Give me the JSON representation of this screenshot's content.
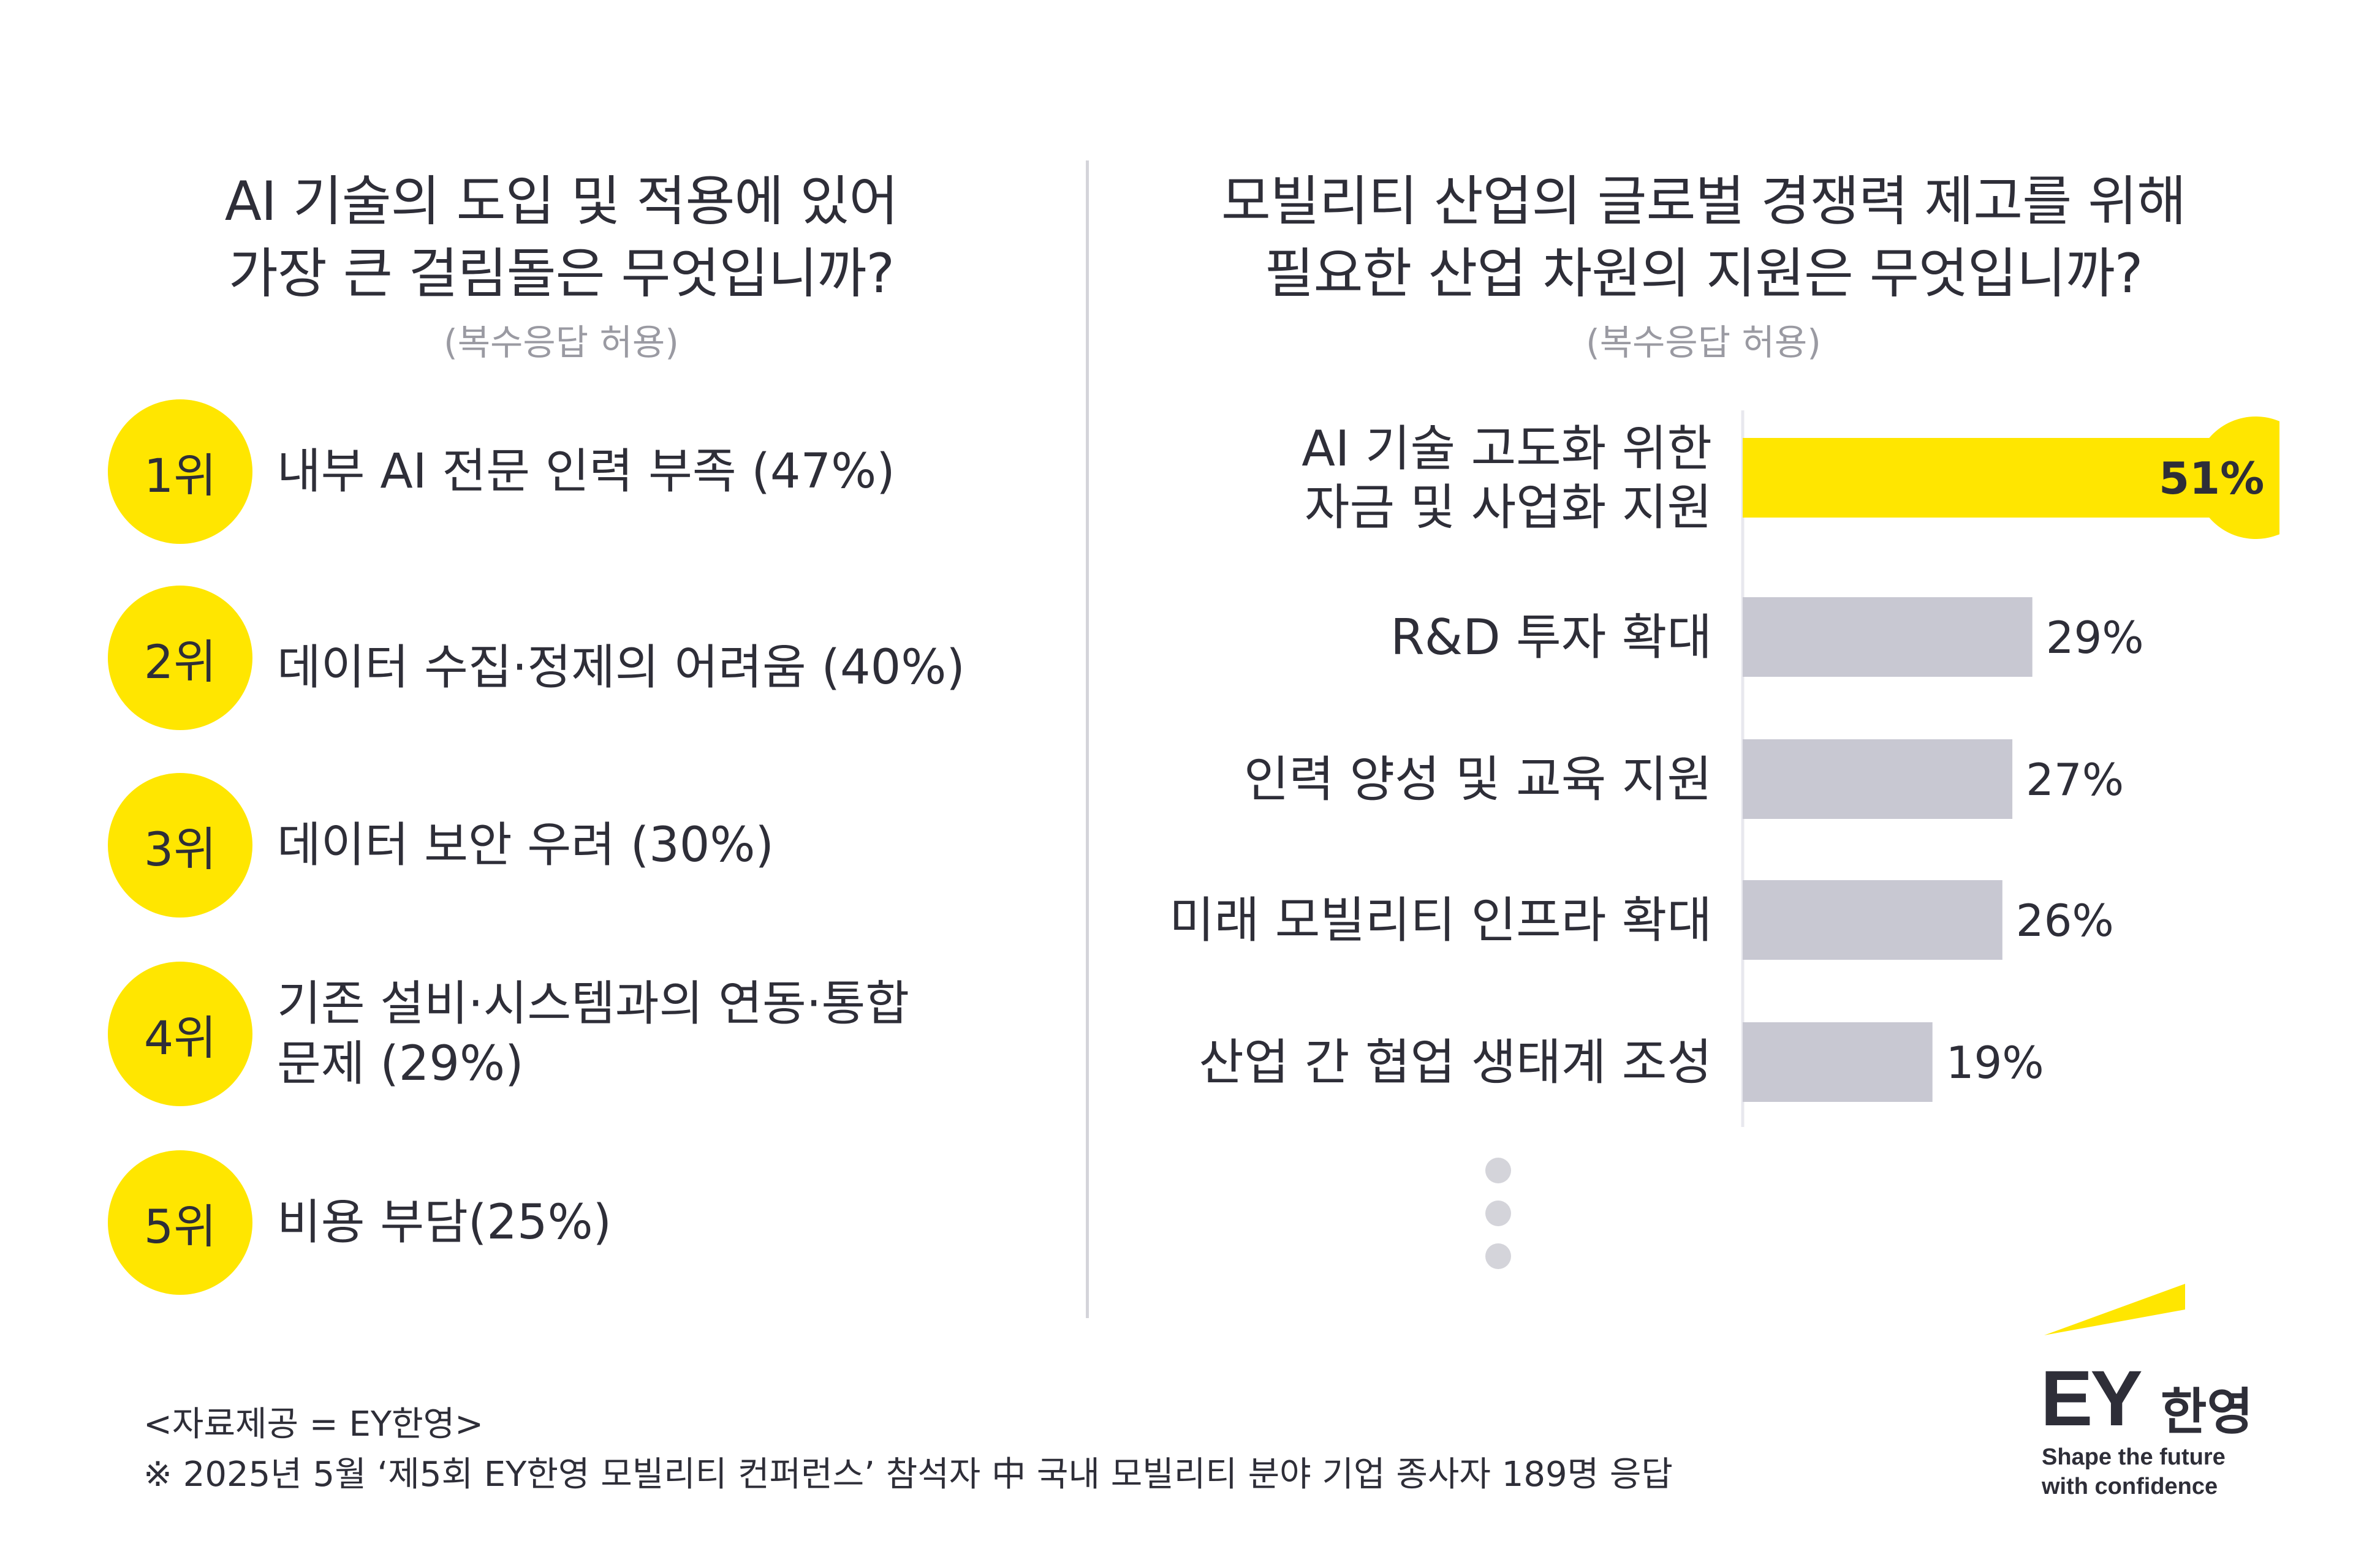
{
  "left": {
    "question_line1": "AI 기술의 도입 및 적용에 있어",
    "question_line2": "가장 큰 걸림돌은 무엇입니까?",
    "note": "(복수응답 허용)",
    "ranks": [
      {
        "rank": "1위",
        "text": "내부 AI 전문 인력 부족 (47%)"
      },
      {
        "rank": "2위",
        "text": "데이터 수집·정제의 어려움 (40%)"
      },
      {
        "rank": "3위",
        "text": "데이터 보안 우려 (30%)"
      },
      {
        "rank": "4위",
        "text_line1": "기존 설비·시스템과의 연동·통합",
        "text_line2": "문제 (29%)"
      },
      {
        "rank": "5위",
        "text": "비용 부담(25%)"
      }
    ]
  },
  "right": {
    "question_line1": "모빌리티 산업의 글로벌 경쟁력 제고를 위해",
    "question_line2": "필요한 산업 차원의 지원은 무엇입니까?",
    "note": "(복수응답 허용)"
  },
  "chart_data": {
    "type": "bar",
    "orientation": "horizontal",
    "categories": [
      [
        "AI 기술 고도화 위한",
        "자금 및 사업화 지원"
      ],
      [
        "R&D 투자 확대"
      ],
      [
        "인력 양성 및 교육 지원"
      ],
      [
        "미래 모빌리티 인프라 확대"
      ],
      [
        "산업 간 협업 생태계 조성"
      ]
    ],
    "values": [
      51,
      29,
      27,
      26,
      19
    ],
    "value_labels": [
      "51%",
      "29%",
      "27%",
      "26%",
      "19%"
    ],
    "colors": {
      "highlight": "#ffe600",
      "default": "#c8c8d2"
    },
    "more_indicator": "vertical-ellipsis"
  },
  "footer": {
    "source": "<자료제공 = EY한영>",
    "note": "※ 2025년 5월 ‘제5회 EY한영 모빌리티 컨퍼런스’ 참석자 中 국내 모빌리티 분야 기업 종사자 189명 응답"
  },
  "logo": {
    "brand": "EY",
    "brand_kr": "한영",
    "tagline_line1": "Shape the future",
    "tagline_line2": "with confidence",
    "accent": "#ffe600"
  }
}
